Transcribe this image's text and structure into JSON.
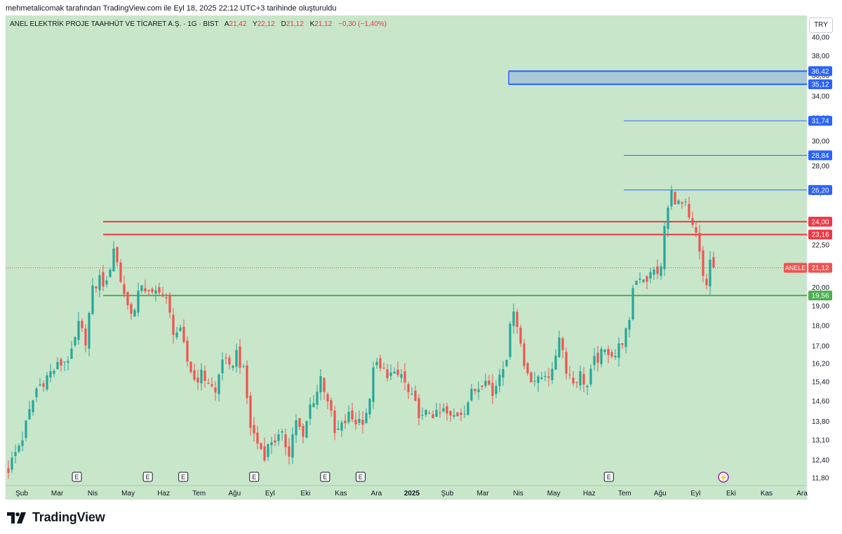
{
  "caption": "mehmetalicomak tarafından TradingView.com ile Eyl 18, 2025 22:12 UTC+3 tarihinde oluşturuldu",
  "logo_text": "TradingView",
  "currency": "TRY",
  "header": {
    "name": "ANEL ELEKTRİK PROJE TAAHHÜT VE TİCARET A.Ş. · 1G · BIST",
    "o_label": "A",
    "o": "21,42",
    "h_label": "Y",
    "h": "22,12",
    "l_label": "D",
    "l": "21,12",
    "c_label": "K",
    "c": "21,12",
    "change": "−0,30 (−1,40%)"
  },
  "colors": {
    "background": "#c8e6c9",
    "up": "#26a69a",
    "down": "#ef5350",
    "resistance": "#f23645",
    "support": "#4caf50",
    "target": "#2962ff",
    "zone_fill": "#a8c8d8"
  },
  "chart_data": {
    "type": "candlestick",
    "symbol": "ANELE",
    "last_price": 21.12,
    "y_scale": "log",
    "ylim": [
      11.55,
      42.5
    ],
    "y_ticks": [
      "40,00",
      "38,00",
      "36,00",
      "34,00",
      "32,00",
      "30,00",
      "28,00",
      "26,00",
      "24,00",
      "22,50",
      "21,00",
      "20,00",
      "19,00",
      "18,00",
      "17,00",
      "16,20",
      "15,40",
      "14,60",
      "13,80",
      "13,10",
      "12,40",
      "11,80"
    ],
    "x_labels": [
      "Şub",
      "Mar",
      "Nis",
      "May",
      "Haz",
      "Tem",
      "Ağu",
      "Eyl",
      "Eki",
      "Kas",
      "Ara",
      "2025",
      "Şub",
      "Mar",
      "Nis",
      "May",
      "Haz",
      "Tem",
      "Ağu",
      "Eyl",
      "Eki",
      "Kas",
      "Ara"
    ],
    "bold_x_label": "2025",
    "path": [
      [
        0,
        12.1
      ],
      [
        4,
        13.2
      ],
      [
        8,
        15.1
      ],
      [
        12,
        15.8
      ],
      [
        15,
        16.2
      ],
      [
        18,
        16.6
      ],
      [
        20,
        18.0
      ],
      [
        22,
        17.3
      ],
      [
        24,
        19.8
      ],
      [
        26,
        20.5
      ],
      [
        28,
        20.1
      ],
      [
        30,
        22.4
      ],
      [
        32,
        20.4
      ],
      [
        34,
        19.0
      ],
      [
        36,
        18.7
      ],
      [
        38,
        20.3
      ],
      [
        40,
        19.6
      ],
      [
        41,
        19.5
      ],
      [
        43,
        20.0
      ],
      [
        45,
        19.2
      ],
      [
        47,
        17.8
      ],
      [
        49,
        17.6
      ],
      [
        51,
        16.3
      ],
      [
        53,
        15.5
      ],
      [
        55,
        15.7
      ],
      [
        57,
        15.4
      ],
      [
        59,
        14.9
      ],
      [
        61,
        16.5
      ],
      [
        63,
        15.9
      ],
      [
        65,
        16.7
      ],
      [
        67,
        15.8
      ],
      [
        69,
        13.6
      ],
      [
        71,
        13.0
      ],
      [
        73,
        12.6
      ],
      [
        75,
        13.1
      ],
      [
        78,
        13.2
      ],
      [
        80,
        12.7
      ],
      [
        82,
        13.9
      ],
      [
        84,
        13.1
      ],
      [
        86,
        14.4
      ],
      [
        88,
        15.0
      ],
      [
        89,
        15.6
      ],
      [
        91,
        14.7
      ],
      [
        93,
        13.3
      ],
      [
        95,
        13.6
      ],
      [
        97,
        14.0
      ],
      [
        99,
        13.8
      ],
      [
        101,
        13.9
      ],
      [
        103,
        14.5
      ],
      [
        104,
        16.2
      ],
      [
        106,
        15.9
      ],
      [
        108,
        15.8
      ],
      [
        110,
        15.6
      ],
      [
        112,
        15.7
      ],
      [
        114,
        14.9
      ],
      [
        116,
        14.4
      ],
      [
        118,
        13.9
      ],
      [
        120,
        14.2
      ],
      [
        122,
        14.0
      ],
      [
        124,
        14.2
      ],
      [
        126,
        13.9
      ],
      [
        128,
        14.1
      ],
      [
        130,
        14.3
      ],
      [
        132,
        14.9
      ],
      [
        134,
        15.2
      ],
      [
        136,
        15.7
      ],
      [
        138,
        14.8
      ],
      [
        140,
        15.8
      ],
      [
        142,
        16.6
      ],
      [
        144,
        19.0
      ],
      [
        145,
        18.1
      ],
      [
        147,
        16.1
      ],
      [
        149,
        15.6
      ],
      [
        151,
        15.4
      ],
      [
        153,
        15.8
      ],
      [
        155,
        15.7
      ],
      [
        157,
        17.6
      ],
      [
        159,
        16.0
      ],
      [
        161,
        15.4
      ],
      [
        163,
        15.7
      ],
      [
        165,
        15.2
      ],
      [
        167,
        16.3
      ],
      [
        169,
        16.6
      ],
      [
        171,
        16.8
      ],
      [
        173,
        16.6
      ],
      [
        175,
        17.3
      ],
      [
        177,
        18.0
      ],
      [
        178,
        20.1
      ],
      [
        180,
        20.7
      ],
      [
        182,
        20.5
      ],
      [
        184,
        20.9
      ],
      [
        186,
        21.0
      ],
      [
        187,
        23.7
      ],
      [
        189,
        26.0
      ],
      [
        191,
        25.2
      ],
      [
        193,
        25.0
      ],
      [
        194,
        24.0
      ],
      [
        196,
        23.1
      ],
      [
        198,
        20.6
      ],
      [
        199,
        20.2
      ],
      [
        200,
        21.5
      ],
      [
        201,
        21.12
      ]
    ],
    "levels": [
      {
        "value": 24.0,
        "label": "24,00",
        "kind": "resistance"
      },
      {
        "value": 23.16,
        "label": "23,16",
        "kind": "resistance"
      },
      {
        "value": 19.56,
        "label": "19,56",
        "kind": "support"
      },
      {
        "value": 26.2,
        "label": "26,20",
        "kind": "target"
      },
      {
        "value": 28.84,
        "label": "28,84",
        "kind": "target"
      },
      {
        "value": 31.74,
        "label": "31,74",
        "kind": "target"
      }
    ],
    "zone": {
      "low": 35.12,
      "high": 36.42,
      "low_label": "35,12",
      "high_label": "36,42"
    },
    "last_label": {
      "symbol": "ANELE",
      "price": "21,12"
    },
    "earnings_marker": "E",
    "earnings_months": [
      "May",
      "Haz",
      "Eki",
      "Kas",
      "Mar",
      "Haz",
      "Ağu"
    ],
    "dividend_marker": "⚡"
  }
}
